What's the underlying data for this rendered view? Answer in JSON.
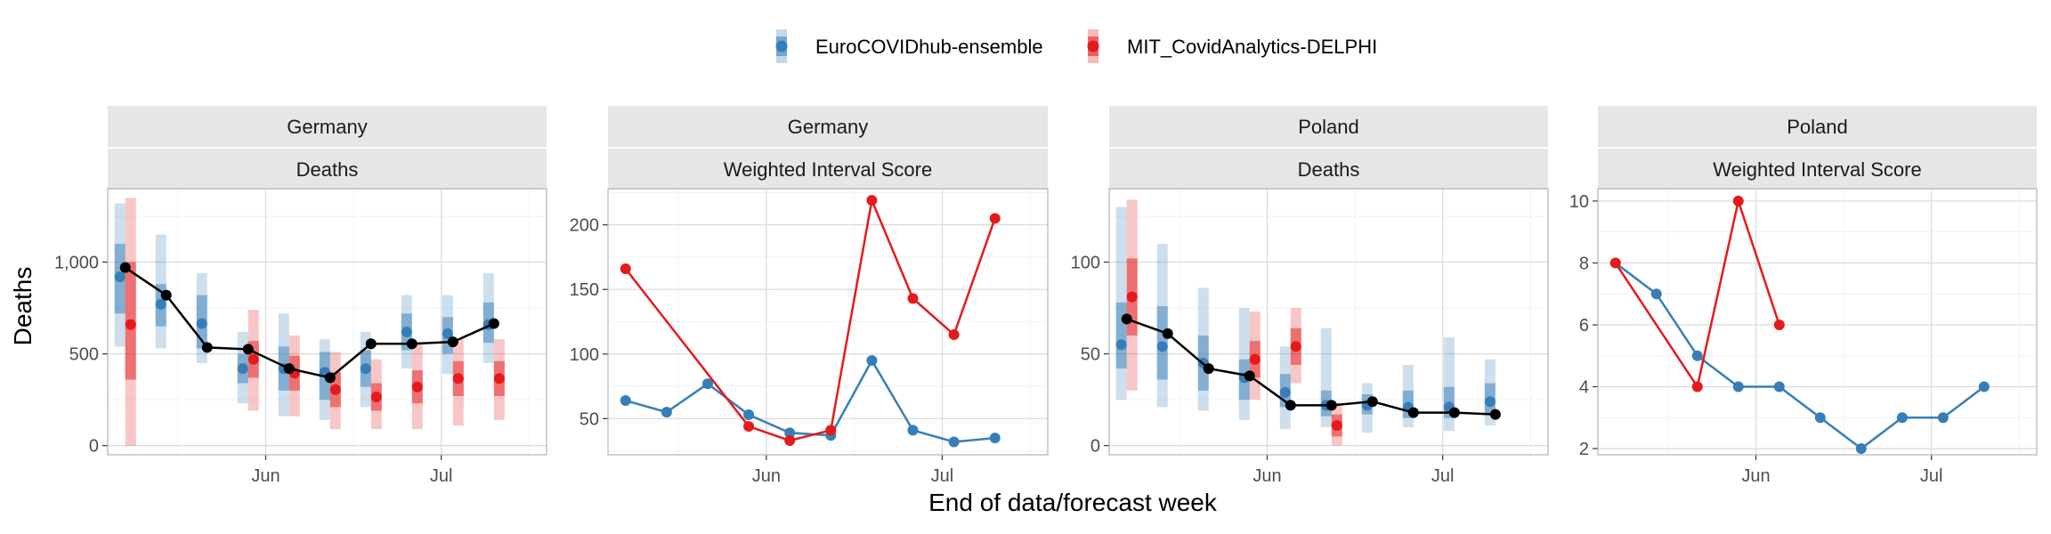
{
  "legend": {
    "items": [
      {
        "name": "EuroCOVIDhub-ensemble",
        "color": "#377EB8"
      },
      {
        "name": "MIT_CovidAnalytics-DELPHI",
        "color": "#E41A1C"
      }
    ],
    "placement": "top"
  },
  "axes": {
    "xlabel": "End of data/forecast week",
    "ylabel": "Deaths"
  },
  "chart_data": [
    {
      "type": "line",
      "facet": [
        "Germany",
        "Deaths"
      ],
      "x_ticks": [
        {
          "date": "2021-06-01",
          "label": "Jun"
        },
        {
          "date": "2021-07-01",
          "label": "Jul"
        }
      ],
      "xlim": [
        "2021-05-05",
        "2021-07-19"
      ],
      "ylim": [
        -50,
        1400
      ],
      "y_ticks": [
        {
          "value": 0,
          "label": "0"
        },
        {
          "value": 500,
          "label": "500"
        },
        {
          "value": 1000,
          "label": "1,000"
        }
      ],
      "observed": {
        "dates": [
          "2021-05-08",
          "2021-05-15",
          "2021-05-22",
          "2021-05-29",
          "2021-06-05",
          "2021-06-12",
          "2021-06-19",
          "2021-06-26",
          "2021-07-03",
          "2021-07-10",
          "2021-07-17"
        ],
        "values": [
          970,
          820,
          535,
          525,
          420,
          370,
          555,
          555,
          565,
          665,
          null
        ]
      },
      "forecasts": [
        {
          "model": "EuroCOVIDhub-ensemble",
          "dates": [
            "2021-05-08",
            "2021-05-15",
            "2021-05-22",
            "2021-05-29",
            "2021-06-05",
            "2021-06-12",
            "2021-06-19",
            "2021-06-26",
            "2021-07-03",
            "2021-07-10"
          ],
          "median": [
            920,
            770,
            665,
            420,
            420,
            400,
            420,
            620,
            610,
            660
          ],
          "q25": [
            720,
            650,
            530,
            340,
            300,
            250,
            320,
            520,
            500,
            560
          ],
          "q75": [
            1100,
            880,
            820,
            500,
            540,
            510,
            520,
            720,
            700,
            780
          ],
          "q05": [
            540,
            530,
            450,
            230,
            160,
            140,
            210,
            420,
            390,
            450
          ],
          "q95": [
            1320,
            1150,
            940,
            620,
            720,
            580,
            620,
            820,
            820,
            940
          ]
        },
        {
          "model": "MIT_CovidAnalytics-DELPHI",
          "dates": [
            "2021-05-08",
            "2021-05-29",
            "2021-06-05",
            "2021-06-12",
            "2021-06-19",
            "2021-06-26",
            "2021-07-03",
            "2021-07-10"
          ],
          "median": [
            660,
            470,
            395,
            305,
            265,
            320,
            365,
            365
          ],
          "q25": [
            360,
            370,
            300,
            210,
            190,
            230,
            270,
            270
          ],
          "q75": [
            1000,
            570,
            490,
            400,
            340,
            410,
            460,
            460
          ],
          "q05": [
            0,
            190,
            160,
            90,
            90,
            90,
            110,
            140
          ],
          "q95": [
            1350,
            740,
            600,
            510,
            470,
            560,
            580,
            580
          ]
        }
      ]
    },
    {
      "type": "line",
      "facet": [
        "Germany",
        "Weighted Interval Score"
      ],
      "x_ticks": [
        {
          "date": "2021-06-01",
          "label": "Jun"
        },
        {
          "date": "2021-07-01",
          "label": "Jul"
        }
      ],
      "xlim": [
        "2021-05-05",
        "2021-07-19"
      ],
      "ylim": [
        22,
        228
      ],
      "y_ticks": [
        {
          "value": 50,
          "label": "50"
        },
        {
          "value": 100,
          "label": "100"
        },
        {
          "value": 150,
          "label": "150"
        },
        {
          "value": 200,
          "label": "200"
        }
      ],
      "series": [
        {
          "name": "EuroCOVIDhub-ensemble",
          "dates": [
            "2021-05-08",
            "2021-05-15",
            "2021-05-22",
            "2021-05-29",
            "2021-06-05",
            "2021-06-12",
            "2021-06-19",
            "2021-06-26",
            "2021-07-03",
            "2021-07-10",
            "2021-07-17"
          ],
          "values": [
            64,
            55,
            77,
            53,
            39,
            37,
            95,
            41,
            32,
            35,
            null
          ]
        },
        {
          "name": "MIT_CovidAnalytics-DELPHI",
          "dates": [
            "2021-05-08",
            "2021-05-29",
            "2021-06-05",
            "2021-06-12",
            "2021-06-19",
            "2021-06-26",
            "2021-07-03",
            "2021-07-10"
          ],
          "values": [
            166,
            44,
            33,
            41,
            219,
            143,
            115,
            205
          ]
        }
      ]
    },
    {
      "type": "line",
      "facet": [
        "Poland",
        "Deaths"
      ],
      "x_ticks": [
        {
          "date": "2021-06-01",
          "label": "Jun"
        },
        {
          "date": "2021-07-01",
          "label": "Jul"
        }
      ],
      "xlim": [
        "2021-05-05",
        "2021-07-19"
      ],
      "ylim": [
        -5,
        140
      ],
      "y_ticks": [
        {
          "value": 0,
          "label": "0"
        },
        {
          "value": 50,
          "label": "50"
        },
        {
          "value": 100,
          "label": "100"
        }
      ],
      "observed": {
        "dates": [
          "2021-05-08",
          "2021-05-15",
          "2021-05-22",
          "2021-05-29",
          "2021-06-05",
          "2021-06-12",
          "2021-06-19",
          "2021-06-26",
          "2021-07-03",
          "2021-07-10"
        ],
        "values": [
          69,
          61,
          42,
          38,
          22,
          22,
          24,
          18,
          18,
          17
        ]
      },
      "forecasts": [
        {
          "model": "EuroCOVIDhub-ensemble",
          "dates": [
            "2021-05-08",
            "2021-05-15",
            "2021-05-22",
            "2021-05-29",
            "2021-06-05",
            "2021-06-12",
            "2021-06-19",
            "2021-06-26",
            "2021-07-03",
            "2021-07-10"
          ],
          "median": [
            55,
            54,
            45,
            37,
            29,
            22,
            22,
            21,
            21,
            24
          ],
          "q25": [
            42,
            36,
            30,
            25,
            21,
            16,
            17,
            15,
            15,
            17
          ],
          "q75": [
            78,
            76,
            60,
            47,
            39,
            30,
            28,
            30,
            32,
            34
          ],
          "q05": [
            25,
            21,
            19,
            14,
            9,
            10,
            7,
            10,
            8,
            11
          ],
          "q95": [
            130,
            110,
            86,
            75,
            54,
            64,
            34,
            44,
            59,
            47
          ]
        },
        {
          "model": "MIT_CovidAnalytics-DELPHI",
          "dates": [
            "2021-05-08",
            "2021-05-29",
            "2021-06-05",
            "2021-06-12"
          ],
          "median": [
            81,
            47,
            54,
            11
          ],
          "q25": [
            60,
            37,
            44,
            5
          ],
          "q75": [
            102,
            57,
            64,
            17
          ],
          "q05": [
            30,
            25,
            34,
            0
          ],
          "q95": [
            134,
            73,
            75,
            23
          ]
        }
      ]
    },
    {
      "type": "line",
      "facet": [
        "Poland",
        "Weighted Interval Score"
      ],
      "x_ticks": [
        {
          "date": "2021-06-01",
          "label": "Jun"
        },
        {
          "date": "2021-07-01",
          "label": "Jul"
        }
      ],
      "xlim": [
        "2021-05-05",
        "2021-07-19"
      ],
      "ylim": [
        1.8,
        10.4
      ],
      "y_ticks": [
        {
          "value": 2,
          "label": "2"
        },
        {
          "value": 4,
          "label": "4"
        },
        {
          "value": 6,
          "label": "6"
        },
        {
          "value": 8,
          "label": "8"
        },
        {
          "value": 10,
          "label": "10"
        }
      ],
      "series": [
        {
          "name": "EuroCOVIDhub-ensemble",
          "dates": [
            "2021-05-08",
            "2021-05-15",
            "2021-05-22",
            "2021-05-29",
            "2021-06-05",
            "2021-06-12",
            "2021-06-19",
            "2021-06-26",
            "2021-07-03",
            "2021-07-10",
            "2021-07-17"
          ],
          "values": [
            8,
            7,
            5,
            4,
            4,
            3,
            2,
            3,
            3,
            4,
            null
          ]
        },
        {
          "name": "MIT_CovidAnalytics-DELPHI",
          "dates": [
            "2021-05-08",
            "2021-05-22",
            "2021-05-29",
            "2021-06-05"
          ],
          "values": [
            8,
            4,
            10,
            6
          ]
        }
      ]
    }
  ]
}
